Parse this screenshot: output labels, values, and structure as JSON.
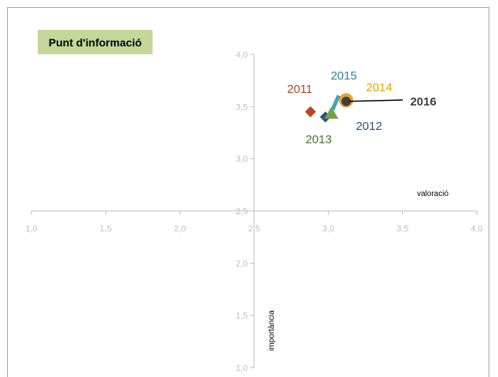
{
  "title": "Punt d'informació",
  "chart_data": {
    "type": "scatter",
    "xlabel": "valoració",
    "ylabel": "importància",
    "xlim": [
      1.0,
      4.0
    ],
    "ylim": [
      1.0,
      4.0
    ],
    "x_ticks": [
      "1,0",
      "1,5",
      "2,0",
      "2,5",
      "3,0",
      "3,5",
      "4,0"
    ],
    "y_ticks": [
      "1,0",
      "1,5",
      "2,0",
      "2,5",
      "3,0",
      "3,5",
      "4,0"
    ],
    "axis_cross": [
      2.5,
      2.5
    ],
    "grid": false,
    "series": [
      {
        "name": "2011",
        "x": 2.88,
        "y": 3.45,
        "marker": "diamond",
        "color": "#b5461f",
        "label_color": "#b5461f"
      },
      {
        "name": "2012",
        "x": 2.98,
        "y": 3.4,
        "marker": "diamond",
        "color": "#2f4f7f",
        "label_color": "#2f4f7f"
      },
      {
        "name": "2013",
        "x": 3.02,
        "y": 3.43,
        "marker": "triangle",
        "color": "#77a04a",
        "label_color": "#4f7031"
      },
      {
        "name": "2014",
        "x": 3.12,
        "y": 3.56,
        "marker": "circle",
        "color": "#f0a030",
        "label_color": "#e0a800"
      },
      {
        "name": "2015",
        "x": 3.06,
        "y": 3.56,
        "marker": "x",
        "color": "#4aa3b0",
        "label_color": "#31859c"
      },
      {
        "name": "2016",
        "x": 3.12,
        "y": 3.55,
        "marker": "circle",
        "color": "#404040",
        "label_color": "#404040"
      }
    ]
  }
}
